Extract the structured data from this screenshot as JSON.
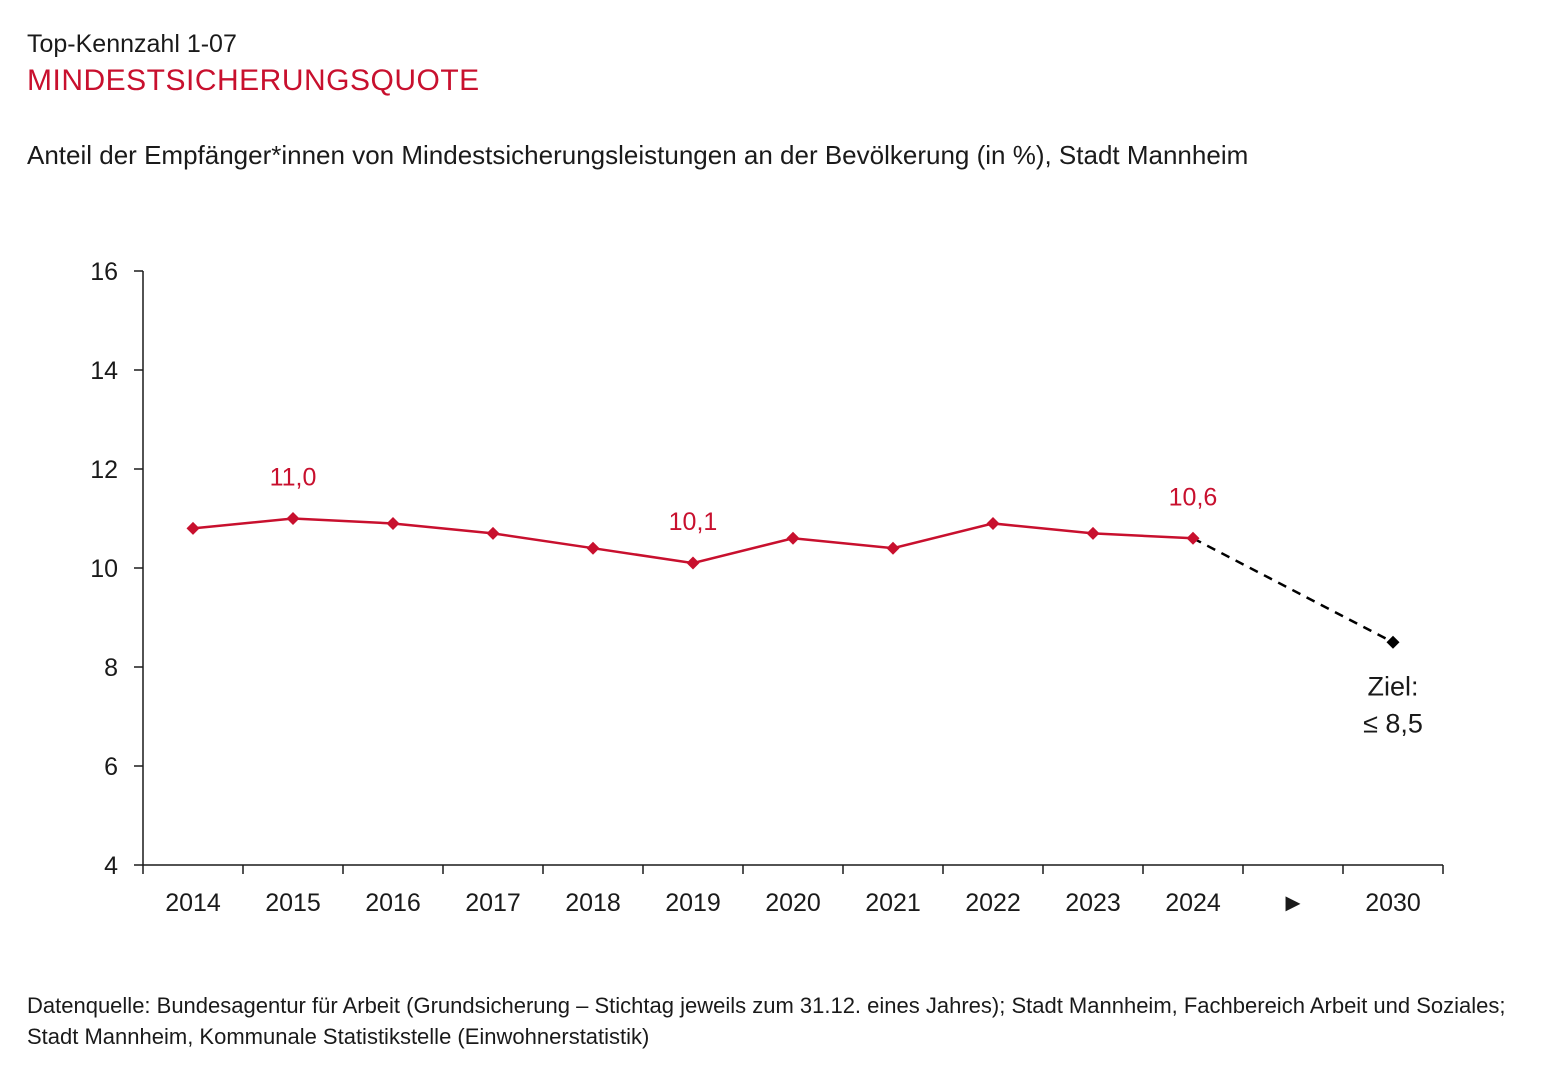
{
  "header": {
    "kicker": "Top-Kennzahl 1-07",
    "title": "MINDESTSICHERUNGSQUOTE",
    "subtitle": "Anteil der Empfänger*innen von Mindestsicherungsleistungen an der Bevölkerung (in %), Stadt Mannheim"
  },
  "footer": {
    "source": "Datenquelle: Bundesagentur für Arbeit (Grundsicherung – Stichtag jeweils zum 31.12. eines Jahres); Stadt Mannheim, Fachbereich Arbeit und Soziales; Stadt Mannheim, Kommunale Statistikstelle (Einwohnerstatistik)"
  },
  "colors": {
    "accent": "#c8102e",
    "text": "#1a1a1a",
    "target": "#000000"
  },
  "chart_data": {
    "type": "line",
    "title": "Anteil der Empfänger*innen von Mindestsicherungsleistungen an der Bevölkerung (in %), Stadt Mannheim",
    "xlabel": "",
    "ylabel": "",
    "ylim": [
      4,
      16
    ],
    "yticks": [
      4,
      6,
      8,
      10,
      12,
      14,
      16
    ],
    "categories": [
      "2014",
      "2015",
      "2016",
      "2017",
      "2018",
      "2019",
      "2020",
      "2021",
      "2022",
      "2023",
      "2024",
      "►",
      "2030"
    ],
    "series": [
      {
        "name": "Mindestsicherungsquote",
        "color": "#c8102e",
        "x": [
          "2014",
          "2015",
          "2016",
          "2017",
          "2018",
          "2019",
          "2020",
          "2021",
          "2022",
          "2023",
          "2024"
        ],
        "values": [
          10.8,
          11.0,
          10.9,
          10.7,
          10.4,
          10.1,
          10.6,
          10.4,
          10.9,
          10.7,
          10.6
        ]
      }
    ],
    "data_labels": [
      {
        "x": "2015",
        "value": 11.0,
        "text": "11,0"
      },
      {
        "x": "2019",
        "value": 10.1,
        "text": "10,1"
      },
      {
        "x": "2024",
        "value": 10.6,
        "text": "10,6"
      }
    ],
    "target": {
      "from_x": "2024",
      "from_value": 10.6,
      "x": "2030",
      "value": 8.5,
      "style": "dashed",
      "label_line1": "Ziel:",
      "label_line2": "≤ 8,5"
    },
    "grid": false,
    "legend": "none"
  }
}
